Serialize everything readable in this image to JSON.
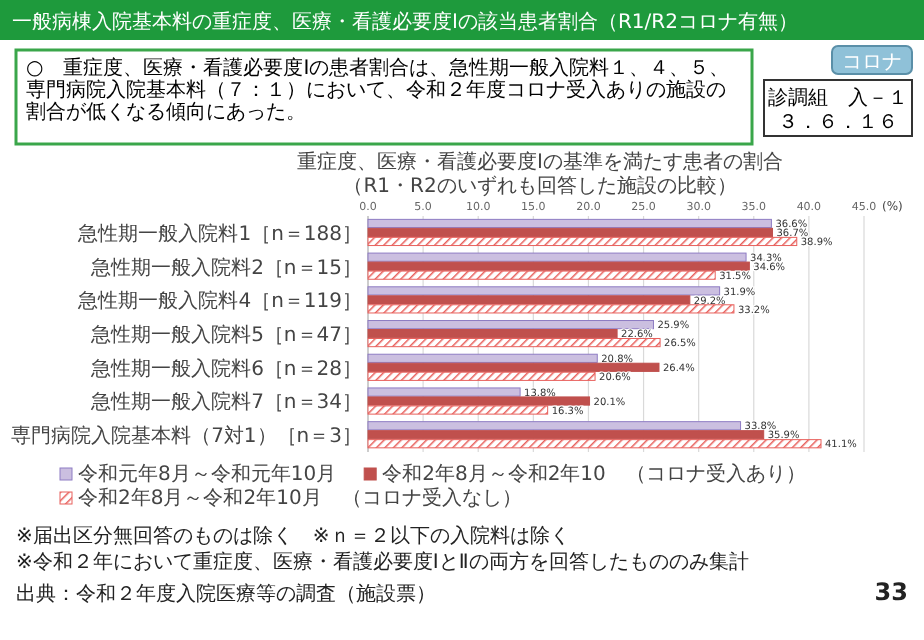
{
  "chart_data": {
    "type": "bar",
    "orientation": "horizontal",
    "title": "一般病棟入院基本料の重症度、医療・看護必要度Ⅰの該当患者割合（R1/R2コロナ有無）",
    "subtitle": "重症度、医療・看護必要度Ⅰの基準を満たす患者の割合",
    "xlabel": "(%)",
    "categories": [
      "急性期一般入院料1［n＝188］",
      "急性期一般入院料2［n＝15］",
      "急性期一般入院料4［n＝119］",
      "急性期一般入院料5［n＝47］",
      "急性期一般入院料6［n＝28］",
      "急性期一般入院料7［n＝34］",
      "専門病院入院基本料（7対1）［n＝3］"
    ],
    "series": [
      {
        "name": "令和元年8月～令和元年10月",
        "color": "#cbbfe0",
        "values": [
          36.6,
          34.3,
          31.9,
          25.9,
          20.8,
          13.8,
          33.8
        ],
        "value_labels": [
          "36.6%",
          "34.3%",
          "31.9%",
          "25.9%",
          "20.8%",
          "13.8%",
          "33.8%"
        ]
      },
      {
        "name": "令和2年8月～令和2年10　（コロナ受入あり）",
        "color": "#c0504d",
        "values": [
          36.7,
          34.6,
          29.2,
          22.6,
          26.4,
          20.1,
          35.9
        ],
        "value_labels": [
          "36.7%",
          "34.6%",
          "29.2%",
          "22.6%",
          "26.4%",
          "20.1%",
          "35.9%"
        ]
      },
      {
        "name": "令和2年8月～令和2年10月　（コロナ受入なし）",
        "color": "#e8605c",
        "values": [
          38.9,
          31.5,
          33.2,
          26.5,
          20.6,
          16.3,
          41.1
        ],
        "value_labels": [
          "38.9%",
          "31.5%",
          "33.2%",
          "26.5%",
          "20.6%",
          "16.3%",
          "41.1%"
        ]
      }
    ],
    "xlim": [
      0,
      45
    ],
    "xticks": [
      {
        "value": 0,
        "label": "0.0"
      },
      {
        "value": 5,
        "label": "5.0"
      },
      {
        "value": 10,
        "label": "10.0"
      },
      {
        "value": 15,
        "label": "15.0"
      },
      {
        "value": 20,
        "label": "20.0"
      },
      {
        "value": 25,
        "label": "25.0"
      },
      {
        "value": 30,
        "label": "30.0"
      },
      {
        "value": 35,
        "label": "35.0"
      },
      {
        "value": 40,
        "label": "40.0"
      },
      {
        "value": 45,
        "label": "45.0"
      }
    ],
    "grid": "x",
    "legend": "bottom",
    "annotations": [
      "○　重症度、医療・看護必要度Ⅰの患者割合は、急性期一般入院料１、４、５、専門病院入院基本料（７：１）において、令和２年度コロナ受入ありの施設の割合が低くなる傾向にあった。",
      "コロナ",
      "診調組　入－１",
      "３．６．１６",
      "（R1・R2のいずれも回答した施設の比較）",
      "※届出区分無回答のものは除く　※ｎ＝２以下の入院料は除く",
      "※令和２年において重症度、医療・看護必要度ⅠとⅡの両方を回答したもののみ集計",
      "出典：令和２年度入院医療等の調査（施設票）",
      "33"
    ]
  }
}
